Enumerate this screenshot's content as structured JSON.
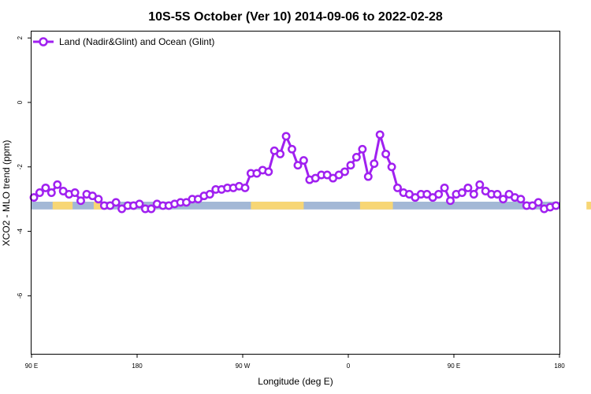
{
  "chart_data": {
    "type": "line",
    "title": "10S-5S October (Ver 10)   2014-09-06 to 2022-02-28",
    "xlabel": "Longitude (deg E)",
    "ylabel": "XCO2 - MLO trend (ppm)",
    "x_ticks": [
      {
        "value": 90,
        "label": "90 E"
      },
      {
        "value": 180,
        "label": "180"
      },
      {
        "value": 270,
        "label": "90 W"
      },
      {
        "value": 360,
        "label": "0"
      },
      {
        "value": 450,
        "label": "90 E"
      },
      {
        "value": 540,
        "label": "180"
      }
    ],
    "y_ticks": [
      2,
      0,
      -2,
      -4,
      -6
    ],
    "xlim": [
      90,
      540
    ],
    "ylim": [
      -7.8,
      2.2
    ],
    "grid": false,
    "legend_position": "top-left",
    "colors": {
      "series": "#a020f0",
      "ocean": "#a3b8d6",
      "land": "#f7d675"
    },
    "land_strip": {
      "y_range": [
        -3.32,
        -3.08
      ],
      "land_segments": [
        [
          108,
          125
        ],
        [
          143,
          150
        ],
        [
          277,
          322
        ],
        [
          370,
          398
        ],
        [
          563,
          570
        ]
      ]
    },
    "series": [
      {
        "name": "Land (Nadir&Glint) and Ocean (Glint)",
        "x": [
          92,
          97,
          102,
          107,
          112,
          117,
          122,
          127,
          132,
          137,
          142,
          147,
          152,
          157,
          162,
          167,
          172,
          177,
          182,
          187,
          192,
          197,
          202,
          207,
          212,
          217,
          222,
          227,
          232,
          237,
          242,
          247,
          252,
          257,
          262,
          267,
          272,
          277,
          282,
          287,
          292,
          297,
          302,
          307,
          312,
          317,
          322,
          327,
          332,
          337,
          342,
          347,
          352,
          357,
          362,
          367,
          372,
          377,
          382,
          387,
          392,
          397,
          402,
          407,
          412,
          417,
          422,
          427,
          432,
          437,
          442,
          447,
          452,
          457,
          462,
          467,
          472,
          477,
          482,
          487,
          492,
          497,
          502,
          507,
          512,
          517,
          522,
          527,
          532,
          537
        ],
        "y": [
          -2.95,
          -2.8,
          -2.65,
          -2.8,
          -2.55,
          -2.75,
          -2.85,
          -2.8,
          -3.05,
          -2.85,
          -2.9,
          -3.0,
          -3.2,
          -3.2,
          -3.1,
          -3.3,
          -3.2,
          -3.2,
          -3.15,
          -3.3,
          -3.3,
          -3.15,
          -3.2,
          -3.2,
          -3.15,
          -3.1,
          -3.1,
          -3.0,
          -3.0,
          -2.9,
          -2.85,
          -2.7,
          -2.7,
          -2.65,
          -2.65,
          -2.6,
          -2.65,
          -2.2,
          -2.2,
          -2.1,
          -2.15,
          -1.5,
          -1.6,
          -1.05,
          -1.45,
          -1.95,
          -1.8,
          -2.4,
          -2.35,
          -2.25,
          -2.25,
          -2.35,
          -2.25,
          -2.15,
          -1.95,
          -1.7,
          -1.45,
          -2.3,
          -1.9,
          -1.0,
          -1.6,
          -2.0,
          -2.65,
          -2.8,
          -2.85,
          -2.95,
          -2.85,
          -2.85,
          -2.95,
          -2.85,
          -2.65,
          -3.05,
          -2.85,
          -2.8,
          -2.65,
          -2.85,
          -2.55,
          -2.75,
          -2.85,
          -2.85,
          -3.0,
          -2.85,
          -2.95,
          -3.0,
          -3.2,
          -3.2,
          -3.1,
          -3.3,
          -3.25,
          -3.2
        ]
      }
    ]
  }
}
